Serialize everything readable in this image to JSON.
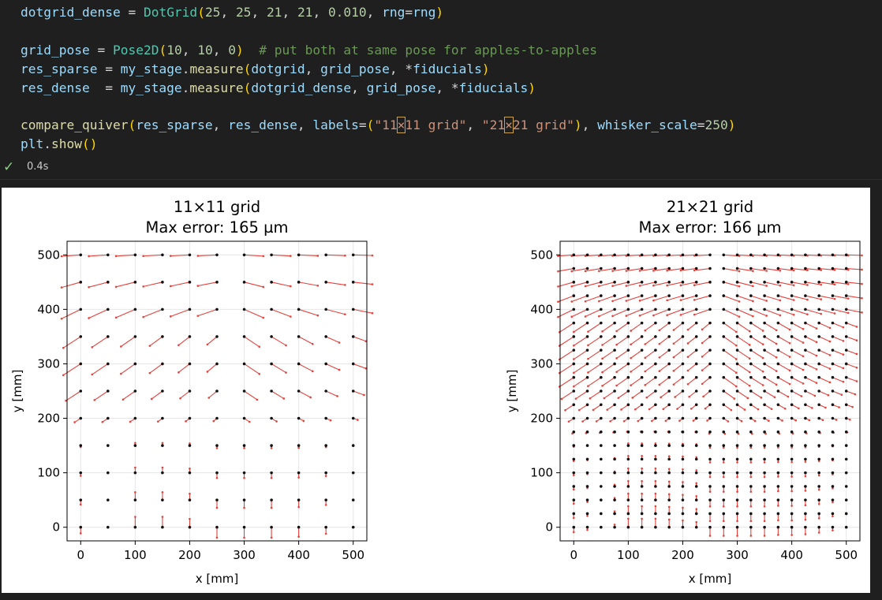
{
  "code": {
    "lines": [
      [
        [
          "v",
          "dotgrid_dense"
        ],
        [
          "o",
          " = "
        ],
        [
          "c",
          "DotGrid"
        ],
        [
          "b",
          "("
        ],
        [
          "n",
          "25"
        ],
        [
          "o",
          ", "
        ],
        [
          "n",
          "25"
        ],
        [
          "o",
          ", "
        ],
        [
          "n",
          "21"
        ],
        [
          "o",
          ", "
        ],
        [
          "n",
          "21"
        ],
        [
          "o",
          ", "
        ],
        [
          "n",
          "0.010"
        ],
        [
          "o",
          ", "
        ],
        [
          "v",
          "rng"
        ],
        [
          "o",
          "="
        ],
        [
          "v",
          "rng"
        ],
        [
          "b",
          ")"
        ]
      ],
      [],
      [
        [
          "v",
          "grid_pose"
        ],
        [
          "o",
          " = "
        ],
        [
          "c",
          "Pose2D"
        ],
        [
          "b",
          "("
        ],
        [
          "n",
          "10"
        ],
        [
          "o",
          ", "
        ],
        [
          "n",
          "10"
        ],
        [
          "o",
          ", "
        ],
        [
          "n",
          "0"
        ],
        [
          "b",
          ")"
        ],
        [
          "o",
          "  "
        ],
        [
          "m",
          "# put both at same pose for apples-to-apples"
        ]
      ],
      [
        [
          "v",
          "res_sparse"
        ],
        [
          "o",
          " = "
        ],
        [
          "v",
          "my_stage"
        ],
        [
          "o",
          "."
        ],
        [
          "f",
          "measure"
        ],
        [
          "b",
          "("
        ],
        [
          "v",
          "dotgrid"
        ],
        [
          "o",
          ", "
        ],
        [
          "v",
          "grid_pose"
        ],
        [
          "o",
          ", *"
        ],
        [
          "v",
          "fiducials"
        ],
        [
          "b",
          ")"
        ]
      ],
      [
        [
          "v",
          "res_dense"
        ],
        [
          "o",
          "  = "
        ],
        [
          "v",
          "my_stage"
        ],
        [
          "o",
          "."
        ],
        [
          "f",
          "measure"
        ],
        [
          "b",
          "("
        ],
        [
          "v",
          "dotgrid_dense"
        ],
        [
          "o",
          ", "
        ],
        [
          "v",
          "grid_pose"
        ],
        [
          "o",
          ", *"
        ],
        [
          "v",
          "fiducials"
        ],
        [
          "b",
          ")"
        ]
      ],
      [],
      [
        [
          "f",
          "compare_quiver"
        ],
        [
          "b",
          "("
        ],
        [
          "v",
          "res_sparse"
        ],
        [
          "o",
          ", "
        ],
        [
          "v",
          "res_dense"
        ],
        [
          "o",
          ", "
        ],
        [
          "v",
          "labels"
        ],
        [
          "o",
          "="
        ],
        [
          "b",
          "("
        ],
        [
          "s",
          "\"11"
        ],
        [
          "h",
          "×"
        ],
        [
          "s",
          "11 grid\""
        ],
        [
          "o",
          ", "
        ],
        [
          "s",
          "\"21"
        ],
        [
          "h",
          "×"
        ],
        [
          "s",
          "21 grid\""
        ],
        [
          "b",
          ")"
        ],
        [
          "o",
          ", "
        ],
        [
          "v",
          "whisker_scale"
        ],
        [
          "o",
          "="
        ],
        [
          "n",
          "250"
        ],
        [
          "b",
          ")"
        ]
      ],
      [
        [
          "v",
          "plt"
        ],
        [
          "o",
          "."
        ],
        [
          "f",
          "show"
        ],
        [
          "b",
          "()"
        ]
      ]
    ]
  },
  "status": {
    "check_icon": "check-icon",
    "elapsed": "0.4s"
  },
  "figure": {
    "arrow_color": "#e8413c",
    "dot_color": "#111111",
    "plots": [
      {
        "title_line1": "11×11 grid",
        "title_line2": "Max error: 165 µm",
        "xlabel": "x [mm]",
        "ylabel": "y [mm]",
        "xticks": [
          "0",
          "100",
          "200",
          "300",
          "400",
          "500"
        ],
        "yticks": [
          "0",
          "100",
          "200",
          "300",
          "400",
          "500"
        ]
      },
      {
        "title_line1": "21×21 grid",
        "title_line2": "Max error: 166 µm",
        "xlabel": "x [mm]",
        "ylabel": "y [mm]",
        "xticks": [
          "0",
          "100",
          "200",
          "300",
          "400",
          "500"
        ],
        "yticks": [
          "0",
          "100",
          "200",
          "300",
          "400",
          "500"
        ]
      }
    ]
  },
  "chart_data": [
    {
      "type": "scatter",
      "title": "11×11 grid\nMax error: 165 µm",
      "xlabel": "x [mm]",
      "ylabel": "y [mm]",
      "xlim": [
        -25,
        525
      ],
      "ylim": [
        -25,
        525
      ],
      "grid": true,
      "points": "11×11 grid points at x,y = 0,50,...,500 with red error whiskers",
      "max_error_um": 165
    },
    {
      "type": "scatter",
      "title": "21×21 grid\nMax error: 166 µm",
      "xlabel": "x [mm]",
      "ylabel": "y [mm]",
      "xlim": [
        -25,
        525
      ],
      "ylim": [
        -25,
        525
      ],
      "grid": true,
      "points": "21×21 grid points at x,y = 0,25,...,500 with red error whiskers",
      "max_error_um": 166
    }
  ]
}
